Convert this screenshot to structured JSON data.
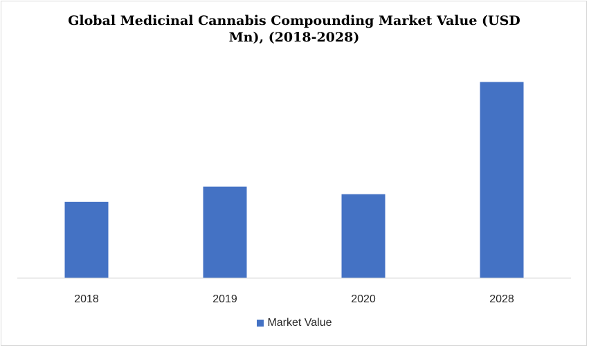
{
  "title": {
    "line1": "Global Medicinal Cannabis Compounding Market Value (USD",
    "line2": "Mn), (2018-2028)"
  },
  "colors": {
    "bar": "#4472C4",
    "axis": "#d9d9d9",
    "tick_text": "#262626"
  },
  "chart_data": {
    "type": "bar",
    "title": "Global Medicinal Cannabis Compounding Market Value (USD Mn), (2018-2028)",
    "categories": [
      "2018",
      "2019",
      "2020",
      "2028"
    ],
    "series": [
      {
        "name": "Market Value",
        "values": [
          35,
          42,
          38.5,
          90
        ]
      }
    ],
    "ylim": [
      0,
      100
    ],
    "grid": false,
    "y_axis_labels_visible": false,
    "legend_position": "bottom"
  },
  "legend": {
    "label": "Market Value"
  }
}
